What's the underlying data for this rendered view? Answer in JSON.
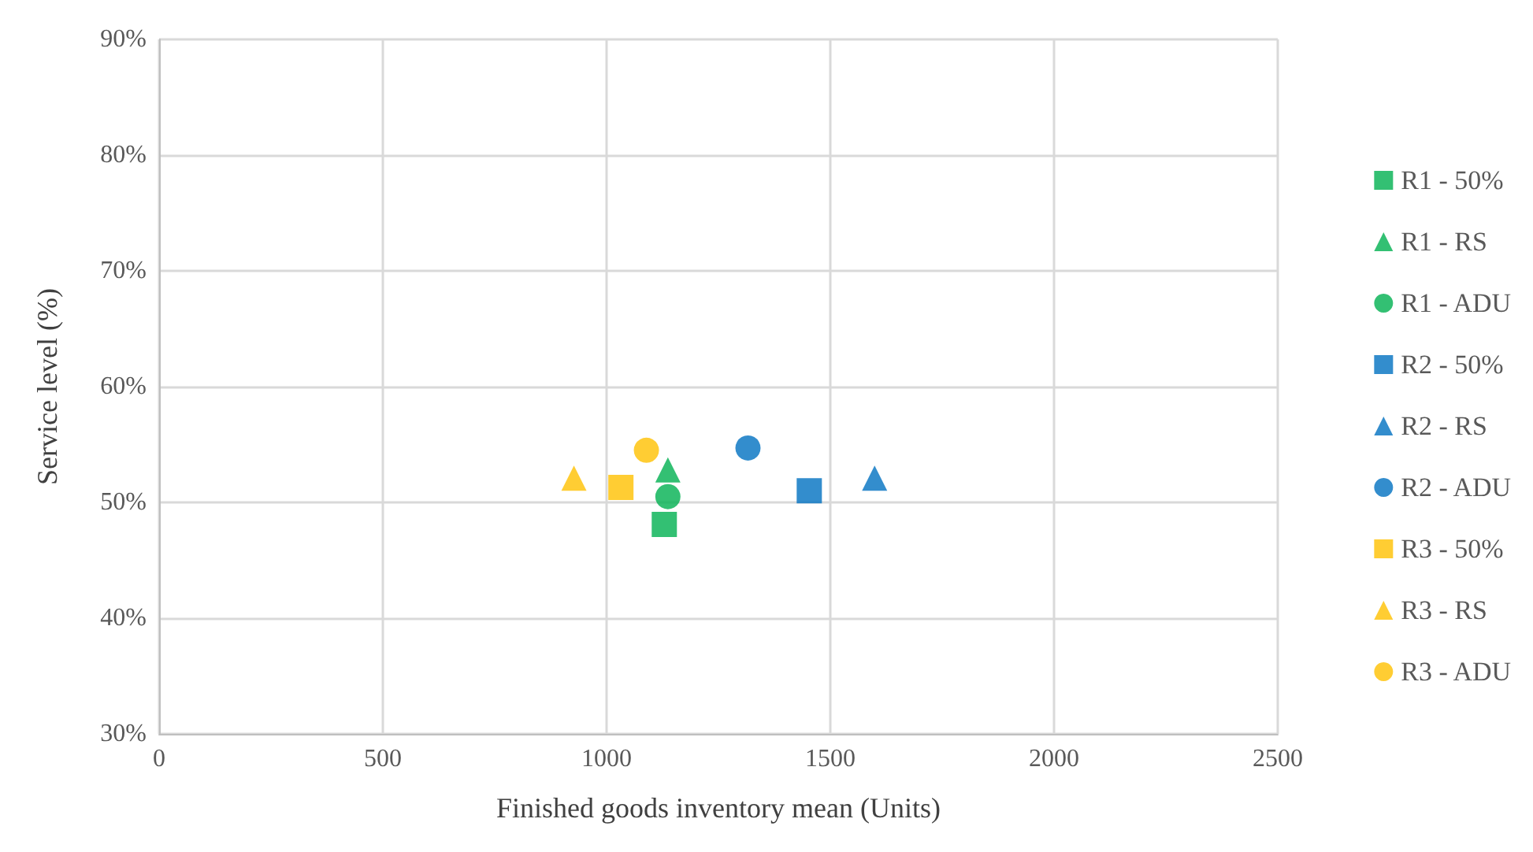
{
  "chart_data": {
    "type": "scatter",
    "xlabel": "Finished goods inventory mean (Units)",
    "ylabel": "Service level (%)",
    "xlim": [
      0,
      2500
    ],
    "xticks": [
      0,
      500,
      1000,
      1500,
      2000,
      2500
    ],
    "ylim": [
      30,
      90
    ],
    "yticks": [
      {
        "value": 30,
        "label": "30%"
      },
      {
        "value": 40,
        "label": "40%"
      },
      {
        "value": 50,
        "label": "50%"
      },
      {
        "value": 60,
        "label": "60%"
      },
      {
        "value": 70,
        "label": "70%"
      },
      {
        "value": 80,
        "label": "80%"
      },
      {
        "value": 90,
        "label": "90%"
      }
    ],
    "grid": true,
    "legend": "right",
    "series": [
      {
        "name": "R1 - 50%",
        "color": "#00b050",
        "marker": "square",
        "x": [
          1129
        ],
        "values": [
          48.1
        ]
      },
      {
        "name": "R1 - RS",
        "color": "#00b050",
        "marker": "triangle",
        "x": [
          1137
        ],
        "values": [
          52.8
        ]
      },
      {
        "name": "R1 - ADU",
        "color": "#00b050",
        "marker": "circle",
        "x": [
          1137
        ],
        "values": [
          50.5
        ]
      },
      {
        "name": "R2 - 50%",
        "color": "#0070c0",
        "marker": "square",
        "x": [
          1453
        ],
        "values": [
          51.0
        ]
      },
      {
        "name": "R2 - RS",
        "color": "#0070c0",
        "marker": "triangle",
        "x": [
          1599
        ],
        "values": [
          52.1
        ]
      },
      {
        "name": "R2 - ADU",
        "color": "#0070c0",
        "marker": "circle",
        "x": [
          1316
        ],
        "values": [
          54.7
        ]
      },
      {
        "name": "R3 - 50%",
        "color": "#ffc000",
        "marker": "square",
        "x": [
          1032
        ],
        "values": [
          51.3
        ]
      },
      {
        "name": "R3 - RS",
        "color": "#ffc000",
        "marker": "triangle",
        "x": [
          927
        ],
        "values": [
          52.1
        ]
      },
      {
        "name": "R3 - ADU",
        "color": "#ffc000",
        "marker": "circle",
        "x": [
          1089
        ],
        "values": [
          54.5
        ]
      }
    ]
  }
}
